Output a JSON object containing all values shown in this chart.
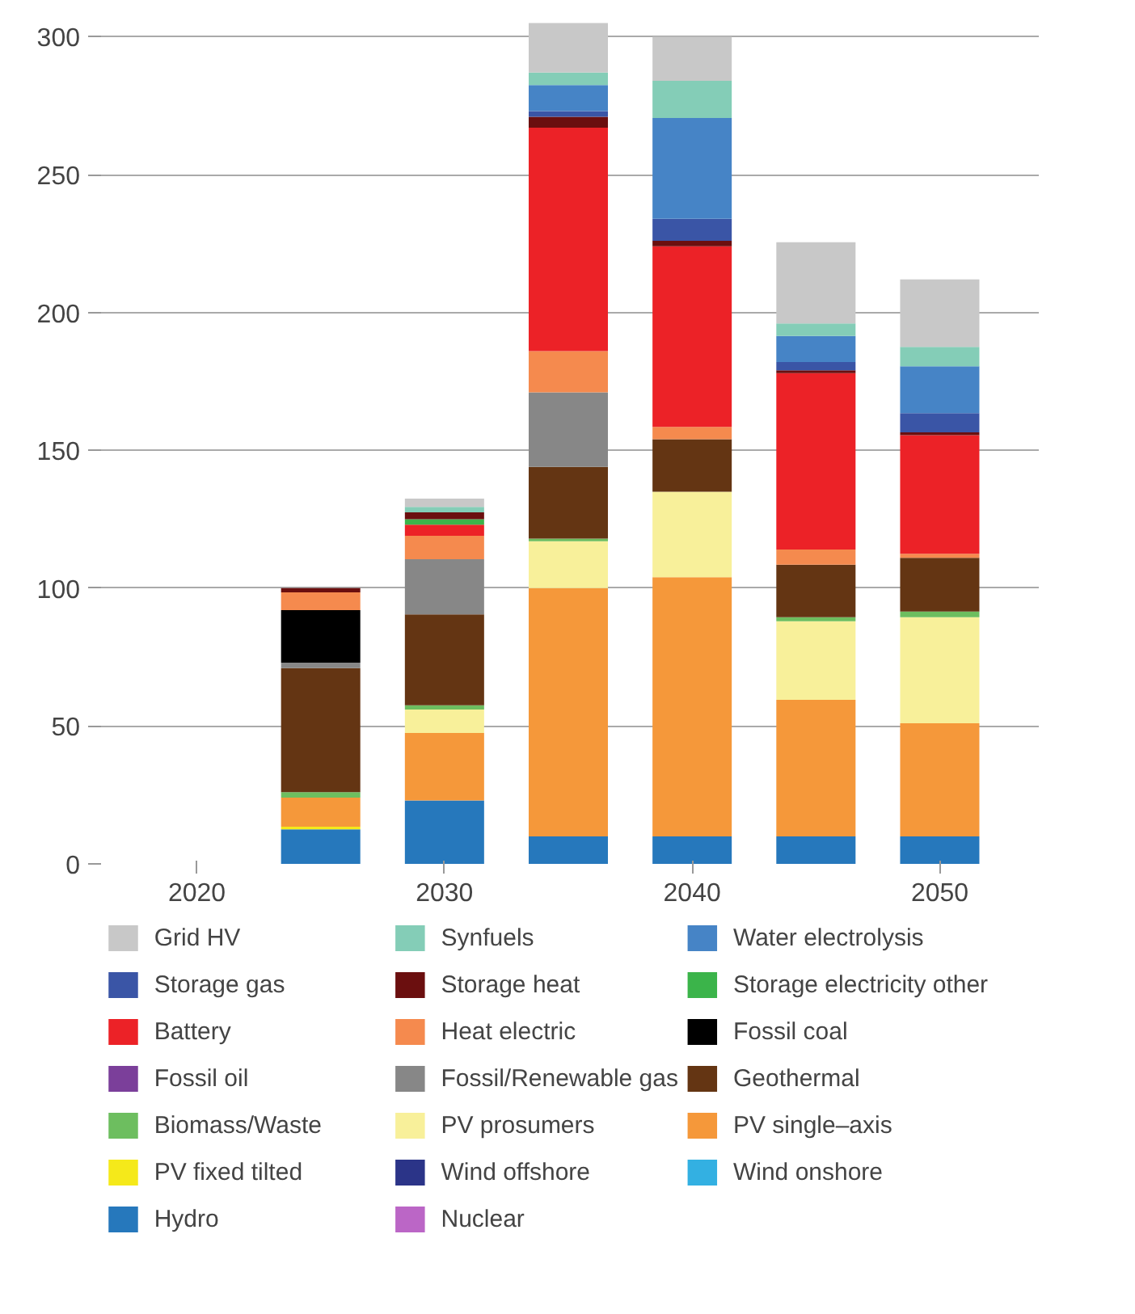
{
  "chart_data": {
    "type": "bar",
    "stacked": true,
    "x": [
      2025,
      2030,
      2035,
      2040,
      2045,
      2050
    ],
    "xlim": [
      2016,
      2054
    ],
    "xticks": [
      2020,
      2030,
      2040,
      2050
    ],
    "ylim": [
      0,
      306
    ],
    "yticks": [
      0,
      50,
      100,
      150,
      200,
      250,
      300
    ],
    "grid": "y",
    "legend": "bottom",
    "series": [
      {
        "name": "Nuclear",
        "color": "#bb66c6",
        "values": [
          0,
          0,
          0,
          0,
          0,
          0
        ]
      },
      {
        "name": "Hydro",
        "color": "#2678bc",
        "values": [
          12.5,
          23,
          10,
          10,
          10,
          10
        ]
      },
      {
        "name": "Wind onshore",
        "color": "#33b0e2",
        "values": [
          0,
          0,
          0,
          0,
          0,
          0
        ]
      },
      {
        "name": "Wind offshore",
        "color": "#2b3488",
        "values": [
          0,
          0,
          0,
          0,
          0,
          0
        ]
      },
      {
        "name": "PV fixed tilted",
        "color": "#f5e91a",
        "values": [
          1,
          0,
          0,
          0,
          0,
          0
        ]
      },
      {
        "name": "PV single–axis",
        "color": "#f5983a",
        "values": [
          10.5,
          24.5,
          90,
          94,
          49.5,
          41
        ]
      },
      {
        "name": "PV prosumers",
        "color": "#f8f09a",
        "values": [
          0,
          8.5,
          17,
          31,
          28.5,
          38.5
        ]
      },
      {
        "name": "Biomass/Waste",
        "color": "#6dbe5f",
        "values": [
          2,
          1.5,
          1,
          0,
          1.5,
          2
        ]
      },
      {
        "name": "Geothermal",
        "color": "#643513",
        "values": [
          45,
          33,
          26,
          19,
          19,
          19.5
        ]
      },
      {
        "name": "Fossil/Renewable gas",
        "color": "#878787",
        "values": [
          2,
          20,
          27,
          0,
          0,
          0
        ]
      },
      {
        "name": "Fossil oil",
        "color": "#7b3f9a",
        "values": [
          0,
          0,
          0,
          0,
          0,
          0
        ]
      },
      {
        "name": "Fossil coal",
        "color": "#000000",
        "values": [
          19,
          0,
          0,
          0,
          0,
          0
        ]
      },
      {
        "name": "Heat electric",
        "color": "#f58a4e",
        "values": [
          6.5,
          8.5,
          15,
          4.5,
          5.5,
          1.5
        ]
      },
      {
        "name": "Battery",
        "color": "#ec2227",
        "values": [
          0,
          4,
          81,
          65.5,
          64,
          43
        ]
      },
      {
        "name": "Storage electricity other",
        "color": "#3bb44a",
        "values": [
          0,
          2,
          0,
          0,
          0,
          0
        ]
      },
      {
        "name": "Storage heat",
        "color": "#6b0f0f",
        "values": [
          1.5,
          2.5,
          4,
          2,
          1,
          1
        ]
      },
      {
        "name": "Storage gas",
        "color": "#3a55a6",
        "values": [
          0,
          0,
          2,
          8,
          3,
          7
        ]
      },
      {
        "name": "Water electrolysis",
        "color": "#4684c6",
        "values": [
          0,
          0,
          9.5,
          36.5,
          9.5,
          17
        ]
      },
      {
        "name": "Synfuels",
        "color": "#84cdb7",
        "values": [
          0,
          2,
          4.5,
          13.5,
          4.5,
          7
        ]
      },
      {
        "name": "Grid HV",
        "color": "#c8c8c8",
        "values": [
          0,
          3,
          18,
          16,
          29.5,
          24.5
        ]
      }
    ]
  }
}
